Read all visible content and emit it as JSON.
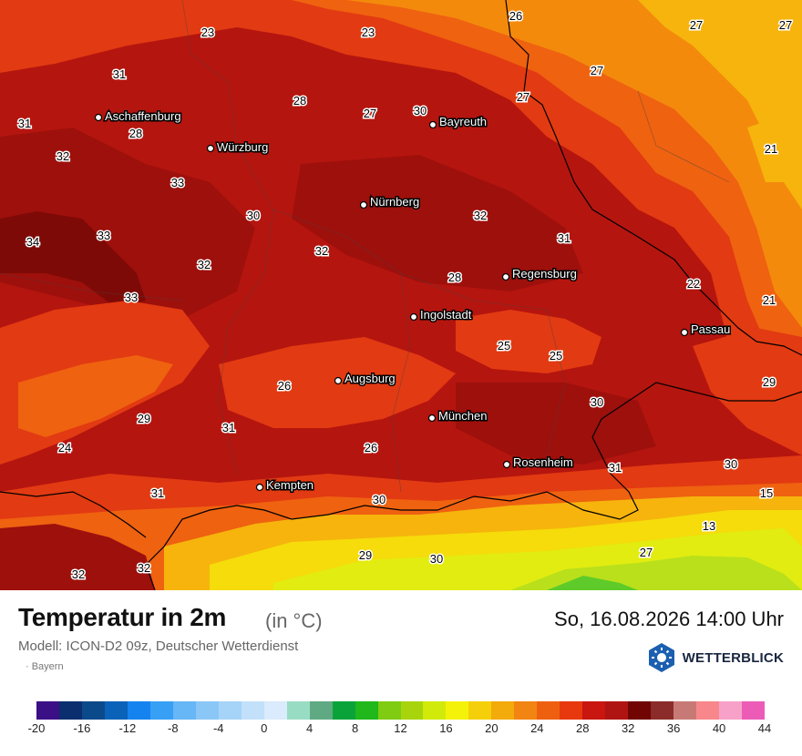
{
  "header": {
    "title": "Temperatur in 2m",
    "unit": "(in °C)",
    "datetime": "So, 16.08.2026 14:00 Uhr",
    "model": "Modell: ICON-D2 09z, Deutscher Wetterdienst",
    "region": "· Bayern",
    "brand": "WETTERBLICK"
  },
  "colors": {
    "base": "#b5150f",
    "darkest": "#7e0a07",
    "dark": "#9e100c",
    "orange_red": "#e23a12",
    "orange": "#ef6210",
    "light_orange": "#f48a0c",
    "yellow_orange": "#f6b40d",
    "yellow": "#f5dc0a",
    "light_yellow": "#e2ec10",
    "green_yellow": "#b9e01a",
    "green": "#5ecb2a"
  },
  "cities": [
    {
      "name": "Aschaffenburg"
    },
    {
      "name": "Würzburg"
    },
    {
      "name": "Bayreuth"
    },
    {
      "name": "Nürnberg"
    },
    {
      "name": "Regensburg"
    },
    {
      "name": "Ingolstadt"
    },
    {
      "name": "Passau"
    },
    {
      "name": "Augsburg"
    },
    {
      "name": "München"
    },
    {
      "name": "Rosenheim"
    },
    {
      "name": "Kempten"
    }
  ],
  "temps": [
    "26",
    "27",
    "27",
    "23",
    "23",
    "31",
    "28",
    "27",
    "30",
    "27",
    "27",
    "31",
    "28",
    "21",
    "32",
    "33",
    "30",
    "32",
    "31",
    "34",
    "33",
    "32",
    "28",
    "22",
    "21",
    "33",
    "32",
    "25",
    "25",
    "29",
    "26",
    "30",
    "29",
    "31",
    "26",
    "24",
    "31",
    "30",
    "30",
    "15",
    "31",
    "13",
    "27",
    "29",
    "30",
    "32",
    "32"
  ],
  "scale": {
    "colors": [
      "#3b0f86",
      "#0a2e6e",
      "#0b4a8a",
      "#0a63b9",
      "#1583ef",
      "#37a0f5",
      "#67b6f5",
      "#8ac7f7",
      "#a6d4f8",
      "#c3e0fa",
      "#d9ebfc",
      "#99dcc4",
      "#5faa82",
      "#0aa33a",
      "#20b81a",
      "#7fcc12",
      "#a8d40c",
      "#d2ea0a",
      "#f5f20a",
      "#f5d00a",
      "#f2ab0a",
      "#f28512",
      "#ee6010",
      "#e8380e",
      "#c9160f",
      "#b01412",
      "#700504",
      "#8c2c2a",
      "#c77a75",
      "#f7878a",
      "#f7a1c8",
      "#ec5cb6"
    ],
    "ticks": [
      "-20",
      "-16",
      "-12",
      "-8",
      "-4",
      "0",
      "4",
      "8",
      "12",
      "16",
      "20",
      "24",
      "28",
      "32",
      "36",
      "40",
      "44"
    ]
  }
}
